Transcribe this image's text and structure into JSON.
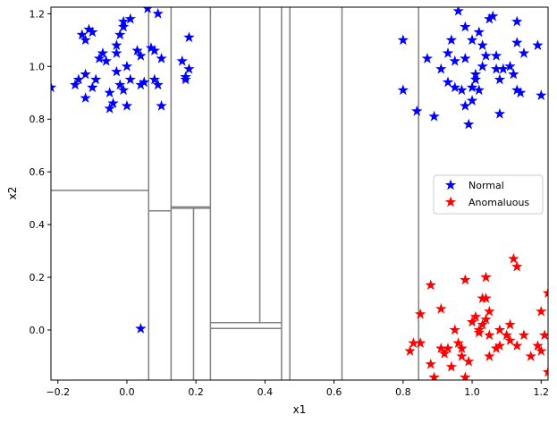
{
  "chart_data": {
    "type": "scatter",
    "xlabel": "x1",
    "ylabel": "x2",
    "xlim": [
      -0.22,
      1.22
    ],
    "ylim": [
      -0.19,
      1.225
    ],
    "xticks": [
      -0.2,
      0.0,
      0.2,
      0.4,
      0.6,
      0.8,
      1.0,
      1.2
    ],
    "yticks": [
      0.0,
      0.2,
      0.4,
      0.6,
      0.8,
      1.0,
      1.2
    ],
    "xtick_labels": [
      "−0.2",
      "0.0",
      "0.2",
      "0.4",
      "0.6",
      "0.8",
      "1.0",
      "1.2"
    ],
    "ytick_labels": [
      "0.0",
      "0.2",
      "0.4",
      "0.6",
      "0.8",
      "1.0",
      "1.2"
    ],
    "legend_position": "right",
    "marker": "star",
    "split_line_color": "#808080",
    "series": [
      {
        "name": "Normal",
        "color": "#0000ff",
        "points": [
          [
            -0.22,
            0.92
          ],
          [
            -0.15,
            0.93
          ],
          [
            -0.14,
            0.95
          ],
          [
            -0.13,
            1.12
          ],
          [
            -0.12,
            1.1
          ],
          [
            -0.11,
            1.14
          ],
          [
            -0.12,
            0.97
          ],
          [
            -0.1,
            0.92
          ],
          [
            -0.09,
            0.95
          ],
          [
            -0.1,
            1.13
          ],
          [
            -0.12,
            0.88
          ],
          [
            -0.08,
            1.03
          ],
          [
            -0.07,
            1.05
          ],
          [
            -0.06,
            1.02
          ],
          [
            -0.05,
            0.84
          ],
          [
            -0.04,
            0.86
          ],
          [
            -0.05,
            0.9
          ],
          [
            -0.03,
            0.98
          ],
          [
            -0.02,
            0.93
          ],
          [
            -0.03,
            1.05
          ],
          [
            -0.03,
            1.08
          ],
          [
            -0.02,
            1.12
          ],
          [
            -0.01,
            1.15
          ],
          [
            -0.01,
            1.17
          ],
          [
            0.01,
            1.18
          ],
          [
            0.0,
            1.0
          ],
          [
            -0.01,
            0.91
          ],
          [
            0.01,
            0.95
          ],
          [
            0.0,
            0.85
          ],
          [
            0.03,
            1.06
          ],
          [
            0.04,
            1.04
          ],
          [
            0.04,
            0.93
          ],
          [
            0.05,
            0.94
          ],
          [
            0.06,
            1.22
          ],
          [
            0.07,
            1.07
          ],
          [
            0.08,
            1.06
          ],
          [
            0.08,
            0.95
          ],
          [
            0.09,
            0.93
          ],
          [
            0.1,
            1.03
          ],
          [
            0.09,
            1.2
          ],
          [
            0.1,
            0.85
          ],
          [
            0.16,
            1.02
          ],
          [
            0.17,
            0.96
          ],
          [
            0.17,
            0.95
          ],
          [
            0.18,
            0.99
          ],
          [
            0.18,
            1.11
          ],
          [
            0.04,
            0.005
          ],
          [
            0.8,
            1.1
          ],
          [
            0.8,
            0.91
          ],
          [
            0.84,
            0.83
          ],
          [
            0.87,
            1.03
          ],
          [
            0.89,
            0.81
          ],
          [
            0.91,
            0.99
          ],
          [
            0.93,
            1.05
          ],
          [
            0.93,
            0.94
          ],
          [
            0.94,
            1.1
          ],
          [
            0.95,
            0.92
          ],
          [
            0.95,
            1.02
          ],
          [
            0.96,
            1.21
          ],
          [
            0.97,
            0.91
          ],
          [
            0.98,
            1.03
          ],
          [
            0.98,
            1.15
          ],
          [
            0.98,
            0.85
          ],
          [
            0.99,
            0.78
          ],
          [
            1.0,
            0.87
          ],
          [
            1.0,
            0.92
          ],
          [
            1.0,
            1.1
          ],
          [
            1.01,
            0.95
          ],
          [
            1.01,
            0.97
          ],
          [
            1.02,
            1.13
          ],
          [
            1.02,
            0.91
          ],
          [
            1.03,
            1.0
          ],
          [
            1.03,
            1.08
          ],
          [
            1.04,
            1.04
          ],
          [
            1.05,
            1.18
          ],
          [
            1.06,
            1.19
          ],
          [
            1.07,
            1.04
          ],
          [
            1.07,
            0.99
          ],
          [
            1.08,
            0.82
          ],
          [
            1.08,
            0.95
          ],
          [
            1.09,
            0.99
          ],
          [
            1.11,
            1.0
          ],
          [
            1.12,
            0.97
          ],
          [
            1.13,
            0.91
          ],
          [
            1.13,
            1.09
          ],
          [
            1.13,
            1.17
          ],
          [
            1.14,
            0.9
          ],
          [
            1.15,
            1.05
          ],
          [
            1.19,
            1.08
          ],
          [
            1.2,
            0.89
          ]
        ]
      },
      {
        "name": "Anomaluous",
        "color": "#ff0000",
        "points": [
          [
            0.82,
            -0.08
          ],
          [
            0.83,
            -0.05
          ],
          [
            0.85,
            0.06
          ],
          [
            0.85,
            -0.05
          ],
          [
            0.88,
            0.17
          ],
          [
            0.88,
            -0.13
          ],
          [
            0.89,
            -0.18
          ],
          [
            0.91,
            0.08
          ],
          [
            0.91,
            -0.07
          ],
          [
            0.92,
            -0.09
          ],
          [
            0.93,
            -0.07
          ],
          [
            0.94,
            -0.14
          ],
          [
            0.95,
            0.0
          ],
          [
            0.96,
            -0.05
          ],
          [
            0.97,
            -0.07
          ],
          [
            0.97,
            -0.1
          ],
          [
            0.98,
            0.19
          ],
          [
            0.98,
            -0.18
          ],
          [
            0.99,
            -0.12
          ],
          [
            1.0,
            0.03
          ],
          [
            1.01,
            0.05
          ],
          [
            1.02,
            0.0
          ],
          [
            1.02,
            -0.01
          ],
          [
            1.03,
            0.12
          ],
          [
            1.03,
            0.02
          ],
          [
            1.04,
            0.2
          ],
          [
            1.04,
            0.12
          ],
          [
            1.04,
            0.04
          ],
          [
            1.05,
            0.07
          ],
          [
            1.05,
            -0.02
          ],
          [
            1.05,
            -0.1
          ],
          [
            1.07,
            -0.07
          ],
          [
            1.08,
            0.0
          ],
          [
            1.08,
            -0.06
          ],
          [
            1.1,
            -0.02
          ],
          [
            1.11,
            0.02
          ],
          [
            1.11,
            -0.04
          ],
          [
            1.12,
            0.27
          ],
          [
            1.13,
            0.24
          ],
          [
            1.13,
            -0.06
          ],
          [
            1.15,
            -0.02
          ],
          [
            1.17,
            -0.1
          ],
          [
            1.19,
            -0.06
          ],
          [
            1.2,
            -0.08
          ],
          [
            1.2,
            0.07
          ],
          [
            1.21,
            -0.02
          ],
          [
            1.22,
            0.14
          ],
          [
            1.22,
            -0.16
          ]
        ]
      }
    ],
    "splits": [
      {
        "x": [
          0.063,
          0.063
        ],
        "y": [
          -0.19,
          1.225
        ]
      },
      {
        "x": [
          0.128,
          0.128
        ],
        "y": [
          -0.19,
          1.225
        ]
      },
      {
        "x": [
          0.242,
          0.242
        ],
        "y": [
          -0.19,
          1.225
        ]
      },
      {
        "x": [
          0.448,
          0.448
        ],
        "y": [
          -0.19,
          1.225
        ]
      },
      {
        "x": [
          0.472,
          0.472
        ],
        "y": [
          -0.19,
          1.225
        ]
      },
      {
        "x": [
          0.623,
          0.623
        ],
        "y": [
          -0.19,
          1.225
        ]
      },
      {
        "x": [
          0.845,
          0.845
        ],
        "y": [
          -0.19,
          1.225
        ]
      },
      {
        "x": [
          0.385,
          0.385
        ],
        "y": [
          0.025,
          1.225
        ]
      },
      {
        "x": [
          0.193,
          0.193
        ],
        "y": [
          -0.19,
          0.465
        ]
      },
      {
        "x": [
          -0.22,
          0.063
        ],
        "y": [
          0.53,
          0.53
        ]
      },
      {
        "x": [
          0.063,
          0.128
        ],
        "y": [
          0.452,
          0.452
        ]
      },
      {
        "x": [
          0.128,
          0.242
        ],
        "y": [
          0.467,
          0.467
        ]
      },
      {
        "x": [
          0.128,
          0.242
        ],
        "y": [
          0.462,
          0.462
        ]
      },
      {
        "x": [
          0.242,
          0.448
        ],
        "y": [
          0.028,
          0.028
        ]
      },
      {
        "x": [
          0.242,
          0.448
        ],
        "y": [
          0.006,
          0.006
        ]
      }
    ]
  }
}
